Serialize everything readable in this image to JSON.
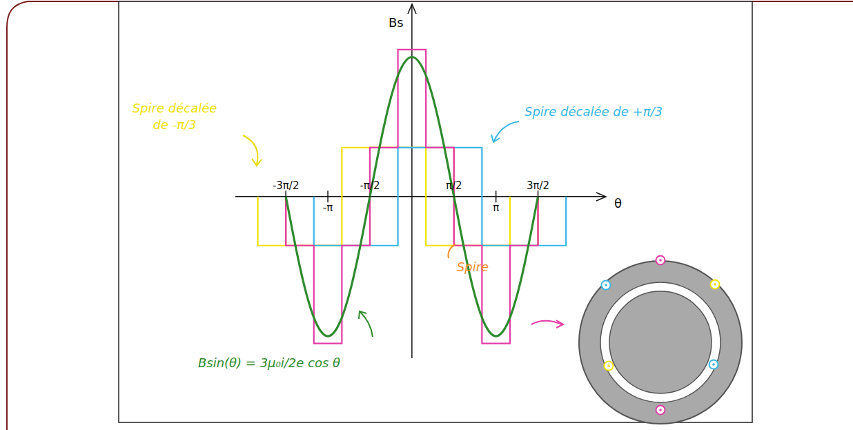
{
  "chart_data": {
    "type": "line",
    "x_label": "θ",
    "y_label": "Bs",
    "xlim": [
      -6.6,
      7.2
    ],
    "ylim": [
      -3.3,
      3.9
    ],
    "xticks": [
      {
        "value": -4.7124,
        "label": "-3π/2"
      },
      {
        "value": -3.1416,
        "label": "-π"
      },
      {
        "value": -1.5708,
        "label": "-π/2"
      },
      {
        "value": 1.5708,
        "label": "π/2"
      },
      {
        "value": 3.1416,
        "label": "π"
      },
      {
        "value": 4.7124,
        "label": "3π/2"
      }
    ],
    "tick_labels": "x",
    "grid": false,
    "series": [
      {
        "name": "Spire",
        "type": "line",
        "color": "#f28c28",
        "x": [
          -4.7124,
          -4.7124,
          -1.5708,
          -1.5708,
          1.5708,
          1.5708,
          4.7124,
          4.7124
        ],
        "values": [
          0,
          -1,
          -1,
          1,
          1,
          -1,
          -1,
          0
        ]
      },
      {
        "name": "Spire décalée de -π/3",
        "type": "line",
        "color": "#f2e205",
        "x": [
          -5.7596,
          -5.7596,
          -2.618,
          -2.618,
          0.5236,
          0.5236,
          3.6652,
          3.6652
        ],
        "values": [
          0,
          -1,
          -1,
          1,
          1,
          -1,
          -1,
          0
        ]
      },
      {
        "name": "Spire décalée de +π/3",
        "type": "line",
        "color": "#38b6e8",
        "x": [
          -3.6652,
          -3.6652,
          -0.5236,
          -0.5236,
          2.618,
          2.618,
          5.7596,
          5.7596
        ],
        "values": [
          0,
          -1,
          -1,
          1,
          1,
          -1,
          -1,
          0
        ]
      },
      {
        "type": "line",
        "color": "#e33aa6",
        "x": [
          -4.7124,
          -4.7124,
          -3.6652,
          -3.6652,
          -2.618,
          -2.618,
          -1.5708,
          -1.5708,
          -0.5236,
          -0.5236,
          0.5236,
          0.5236,
          1.5708,
          1.5708,
          2.618,
          2.618,
          3.6652,
          3.6652,
          4.7124,
          4.7124
        ],
        "values": [
          0,
          -1,
          -1,
          -3,
          -3,
          -1,
          -1,
          1,
          1,
          3,
          3,
          1,
          1,
          -1,
          -1,
          -3,
          -3,
          -1,
          -1,
          0
        ]
      },
      {
        "name": "Bsin(θ) = 3μ₀i/2e cos θ",
        "type": "spline",
        "color": "#2e8b2e",
        "x": [
          -4.7124,
          -4.4506,
          -4.1888,
          -3.927,
          -3.6652,
          -3.4034,
          -3.1416,
          -2.8798,
          -2.618,
          -2.3562,
          -2.0944,
          -1.8326,
          -1.5708,
          -1.309,
          -1.0472,
          -0.7854,
          -0.5236,
          -0.2618,
          0,
          0.2618,
          0.5236,
          0.7854,
          1.0472,
          1.309,
          1.5708,
          1.8326,
          2.0944,
          2.3562,
          2.618,
          2.8798,
          3.1416,
          3.4034,
          3.6652,
          3.927,
          4.1888,
          4.4506,
          4.7124
        ],
        "values": [
          0,
          -0.74,
          -1.43,
          -2.02,
          -2.47,
          -2.75,
          -2.85,
          -2.75,
          -2.47,
          -2.02,
          -1.43,
          -0.74,
          0,
          0.74,
          1.43,
          2.02,
          2.47,
          2.75,
          2.85,
          2.75,
          2.47,
          2.02,
          1.43,
          0.74,
          0,
          -0.74,
          -1.43,
          -2.02,
          -2.47,
          -2.75,
          -2.85,
          -2.75,
          -2.47,
          -2.02,
          -1.43,
          -0.74,
          0
        ]
      }
    ]
  }
}
